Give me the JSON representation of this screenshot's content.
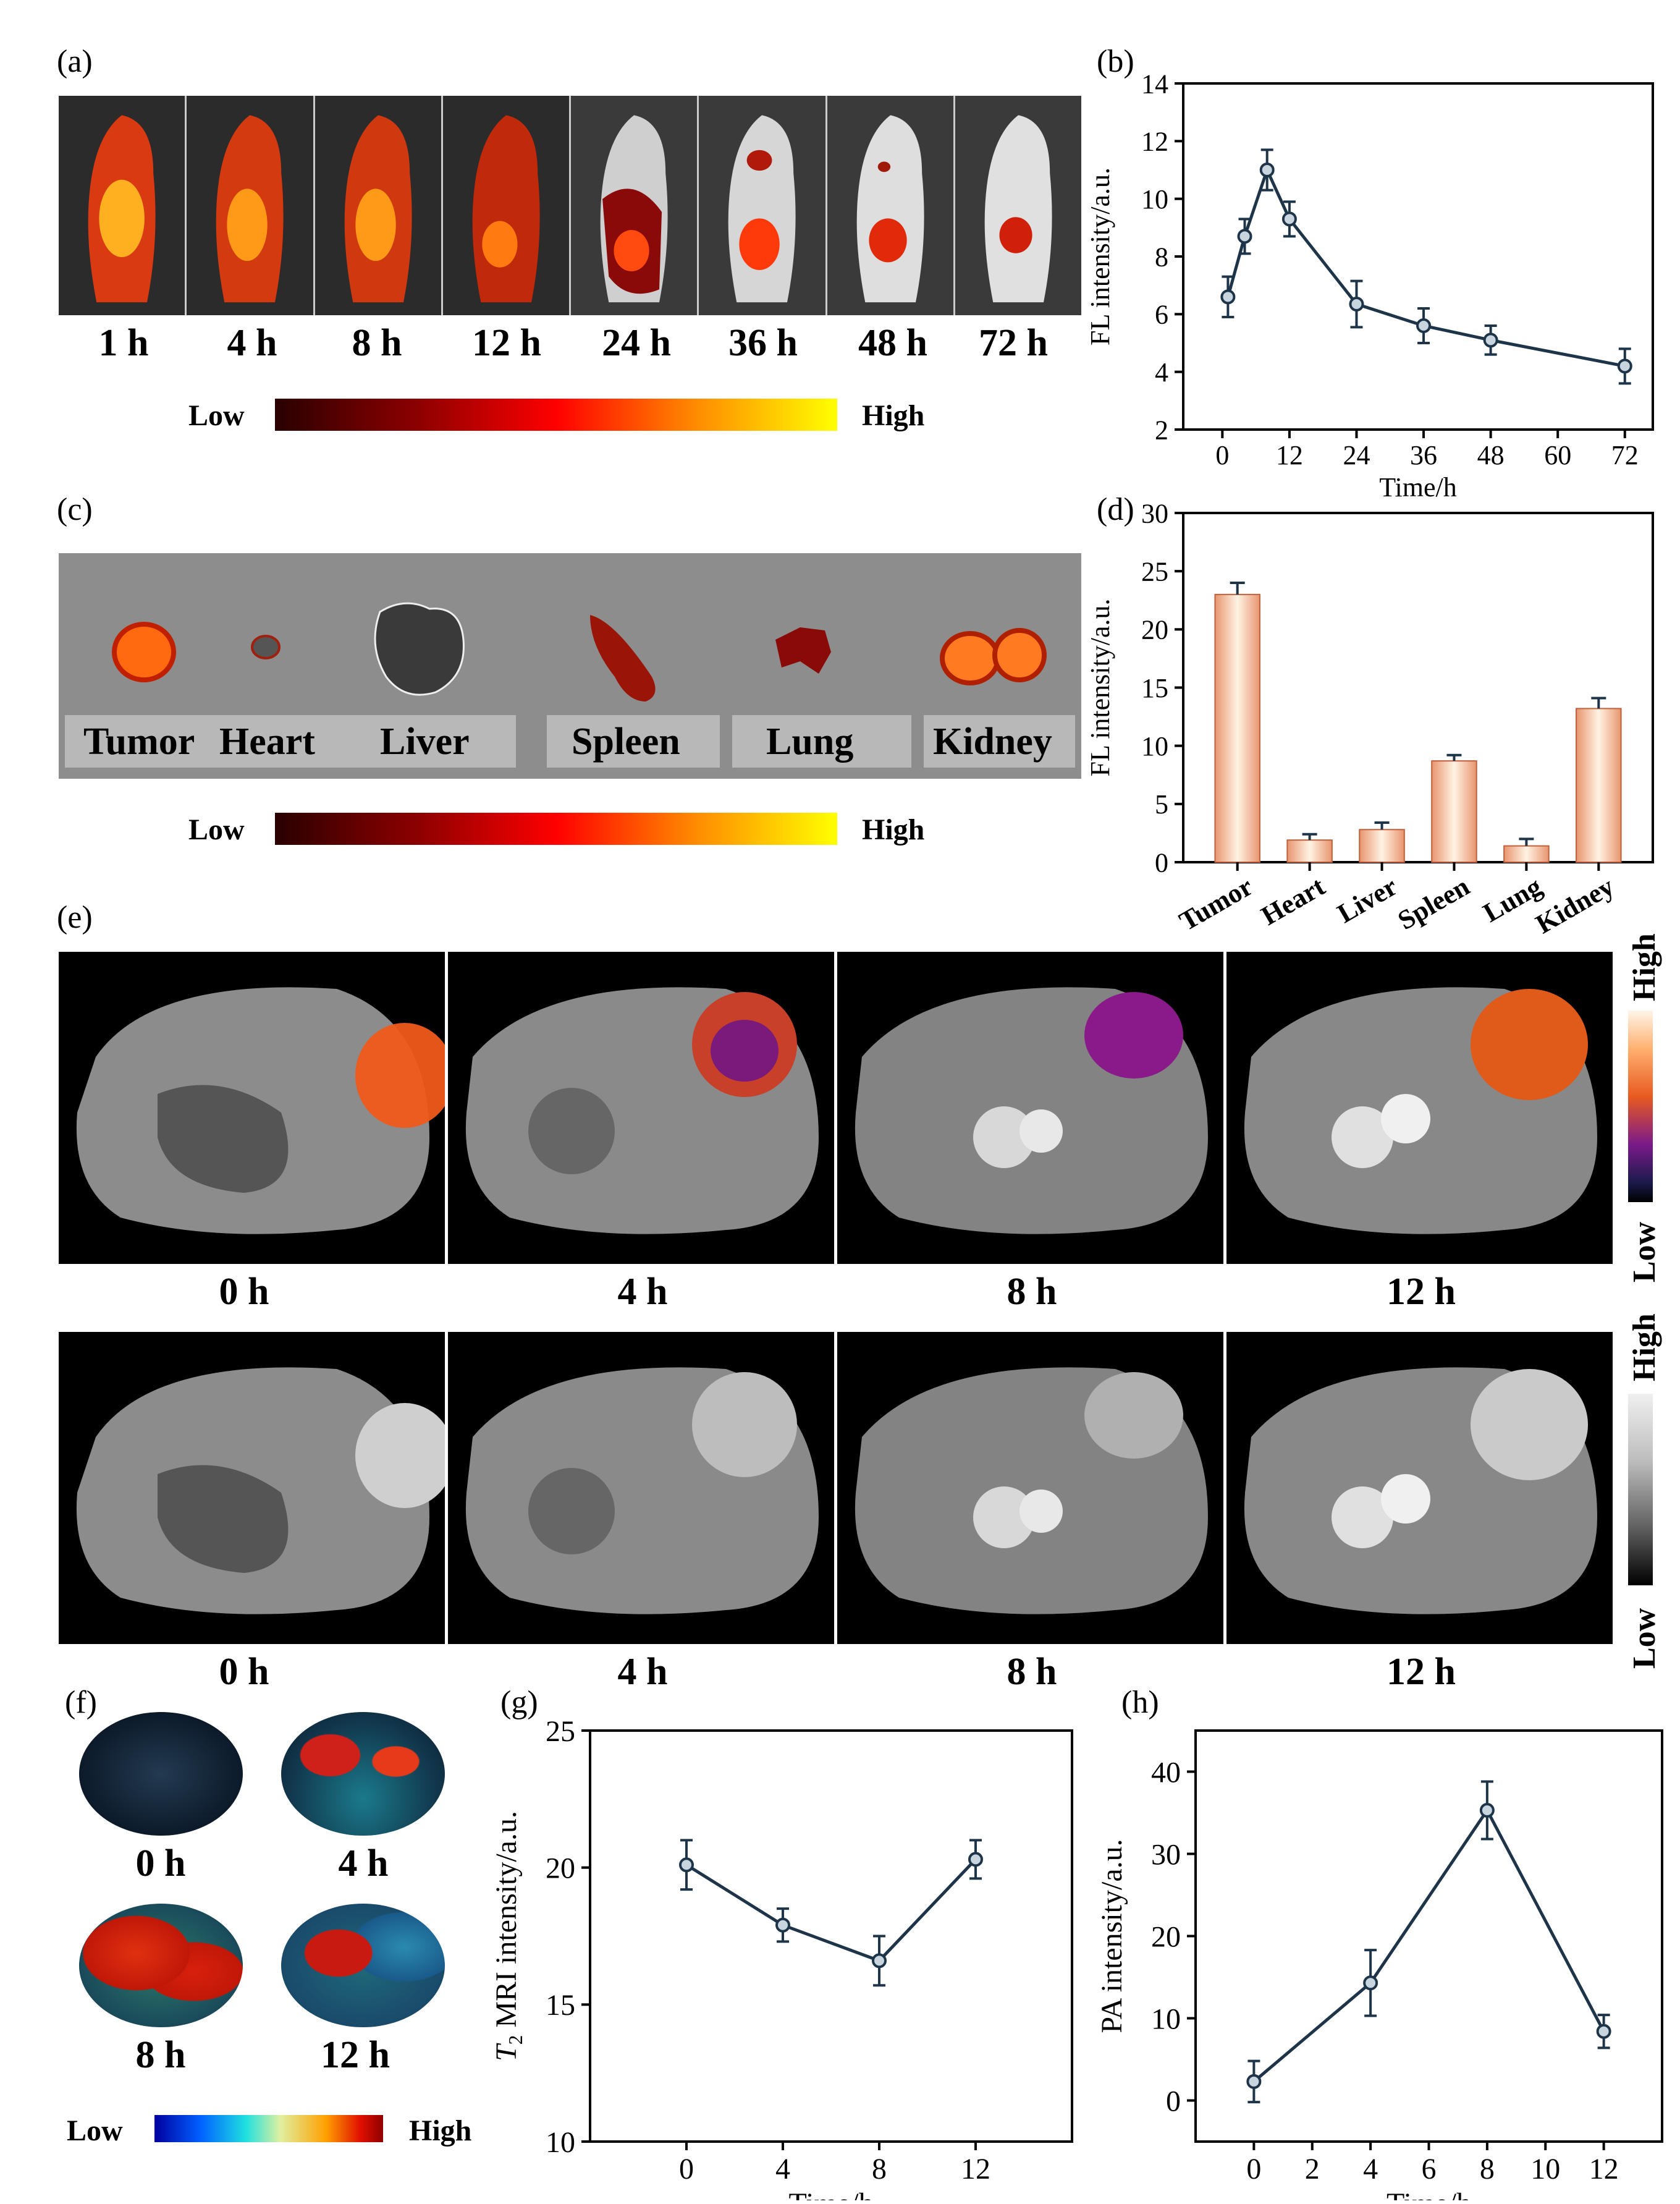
{
  "panels": {
    "a": "(a)",
    "b": "(b)",
    "c": "(c)",
    "d": "(d)",
    "e": "(e)",
    "f": "(f)",
    "g": "(g)",
    "h": "(h)"
  },
  "panel_a": {
    "time_labels": [
      "1 h",
      "4 h",
      "8 h",
      "12 h",
      "24 h",
      "36 h",
      "48 h",
      "72 h"
    ],
    "colorbar": {
      "low": "Low",
      "high": "High",
      "colors": [
        "#2a0000",
        "#8b0000",
        "#ff0000",
        "#ff8c00",
        "#ffff00"
      ]
    }
  },
  "panel_c": {
    "organ_labels": [
      "Tumor",
      "Heart",
      "Liver",
      "Spleen",
      "Lung",
      "Kidney"
    ],
    "colorbar": {
      "low": "Low",
      "high": "High"
    }
  },
  "panel_e": {
    "time_labels_top": [
      "0 h",
      "4 h",
      "8 h",
      "12 h"
    ],
    "time_labels_bottom": [
      "0 h",
      "4 h",
      "8 h",
      "12 h"
    ],
    "colorbar_top": {
      "low": "Low",
      "high": "High"
    },
    "colorbar_bottom": {
      "low": "Low",
      "high": "High"
    }
  },
  "panel_f": {
    "time_labels": [
      "0 h",
      "4 h",
      "8 h",
      "12 h"
    ],
    "colorbar": {
      "low": "Low",
      "high": "High"
    }
  },
  "chart_data": [
    {
      "id": "b",
      "type": "line",
      "xlabel": "Time/h",
      "ylabel": "FL intensity/a.u.",
      "xlim": [
        -7,
        77
      ],
      "ylim": [
        2,
        14
      ],
      "xticks": [
        0,
        12,
        24,
        36,
        48,
        60,
        72
      ],
      "yticks": [
        2,
        4,
        6,
        8,
        10,
        12,
        14
      ],
      "x": [
        1,
        4,
        8,
        12,
        24,
        36,
        48,
        72
      ],
      "y": [
        6.6,
        8.7,
        11.0,
        9.3,
        6.35,
        5.6,
        5.1,
        4.2
      ],
      "err": [
        0.7,
        0.6,
        0.7,
        0.6,
        0.8,
        0.6,
        0.5,
        0.6
      ],
      "color": "#1e3448"
    },
    {
      "id": "d",
      "type": "bar",
      "xlabel": "",
      "ylabel": "FL intensity/a.u.",
      "ylim": [
        0,
        30
      ],
      "yticks": [
        0,
        5,
        10,
        15,
        20,
        25,
        30
      ],
      "categories": [
        "Tumor",
        "Heart",
        "Liver",
        "Spleen",
        "Lung",
        "Kidney"
      ],
      "values": [
        23.0,
        1.9,
        2.8,
        8.7,
        1.4,
        13.2
      ],
      "err": [
        1.0,
        0.5,
        0.6,
        0.5,
        0.6,
        0.9
      ],
      "color": "#e8956f"
    },
    {
      "id": "g",
      "type": "line",
      "xlabel": "Time/h",
      "ylabel": "T2 MRI intensity/a.u.",
      "xlim": [
        -4,
        16
      ],
      "ylim": [
        10,
        25
      ],
      "xticks": [
        0,
        4,
        8,
        12
      ],
      "yticks": [
        10,
        15,
        20,
        25
      ],
      "x": [
        0,
        4,
        8,
        12
      ],
      "y": [
        20.1,
        17.9,
        16.6,
        20.3
      ],
      "err": [
        0.9,
        0.6,
        0.9,
        0.7
      ],
      "color": "#1e3448"
    },
    {
      "id": "h",
      "type": "line",
      "xlabel": "Time/h",
      "ylabel": "PA intensity/a.u.",
      "xlim": [
        -2,
        14
      ],
      "ylim": [
        -5,
        45
      ],
      "xticks": [
        0,
        2,
        4,
        6,
        8,
        10,
        12
      ],
      "yticks": [
        0,
        10,
        20,
        30,
        40
      ],
      "x": [
        0,
        4,
        8,
        12
      ],
      "y": [
        2.3,
        14.3,
        35.3,
        8.4
      ],
      "err": [
        2.5,
        4.0,
        3.5,
        2.0
      ],
      "color": "#1e3448"
    }
  ]
}
